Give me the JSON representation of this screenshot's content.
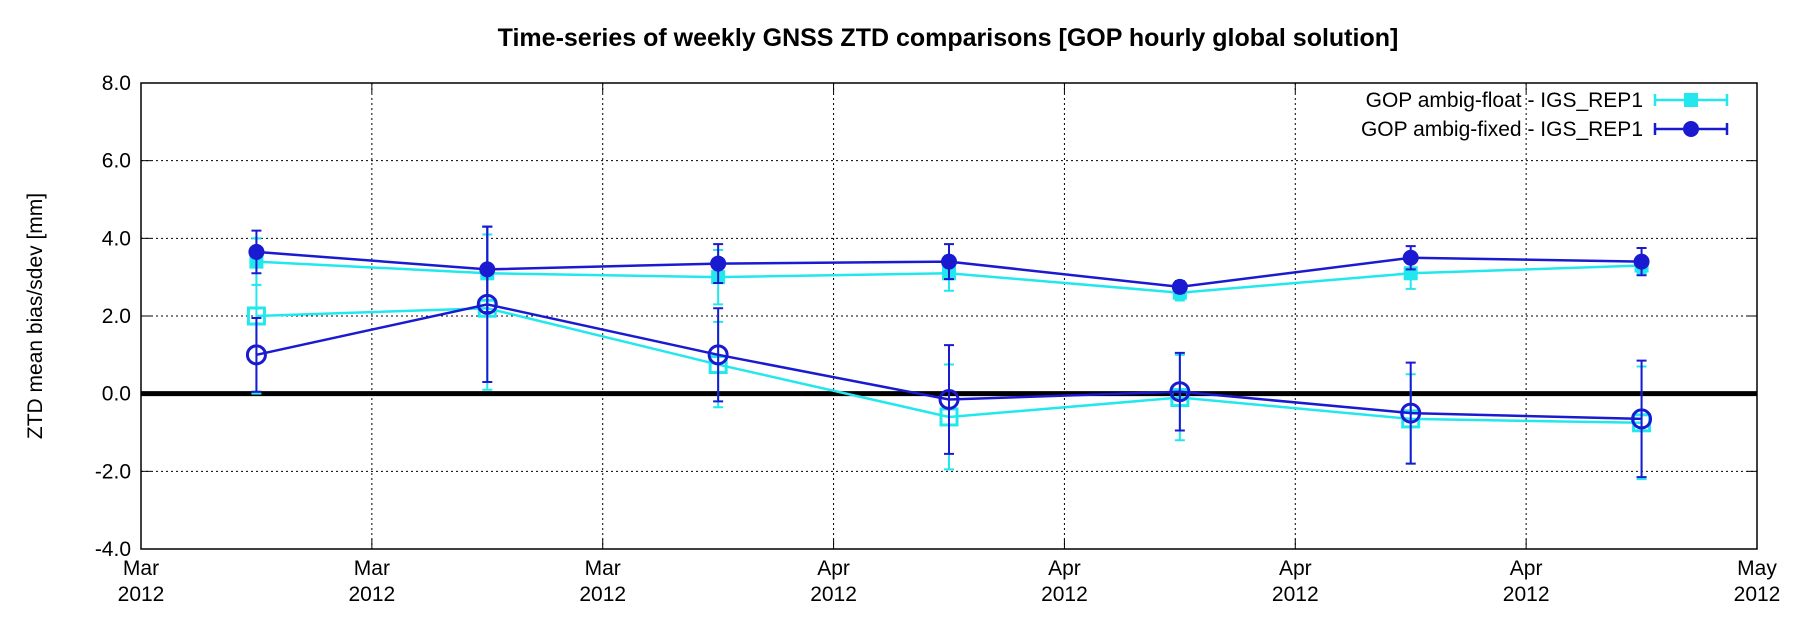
{
  "chart_data": {
    "type": "errorbar-line",
    "title": "Time-series of weekly GNSS ZTD comparisons [GOP hourly global solution]",
    "ylabel": "ZTD mean bias/sdev [mm]",
    "categories": [
      null,
      null,
      null,
      null,
      null,
      null,
      null
    ],
    "xtick_labels": [
      "Mar 2012",
      "Mar 2012",
      "Mar 2012",
      "Apr 2012",
      "Apr 2012",
      "Apr 2012",
      "Apr 2012",
      "May 2012"
    ],
    "ylim": [
      -4,
      8
    ],
    "yticks": [
      {
        "value": -4,
        "label": "-4.0"
      },
      {
        "value": -2,
        "label": "-2.0"
      },
      {
        "value": 0,
        "label": "0.0"
      },
      {
        "value": 2,
        "label": "2.0"
      },
      {
        "value": 4,
        "label": "4.0"
      },
      {
        "value": 6,
        "label": "6.0"
      },
      {
        "value": 8,
        "label": "8.0"
      }
    ],
    "grid": true,
    "legend": "upper right",
    "series": [
      {
        "name": "GOP ambig-float - IGS_REP1",
        "color": "#22e8ee",
        "marker": "square",
        "sdev": [
          3.4,
          3.1,
          3.0,
          3.1,
          2.6,
          3.1,
          3.3
        ],
        "sdev_err": [
          0.6,
          1.0,
          0.7,
          0.45,
          0.2,
          0.4,
          0.2
        ],
        "bias": [
          2.0,
          2.2,
          0.75,
          -0.6,
          -0.1,
          -0.65,
          -0.75
        ],
        "bias_err": [
          2.0,
          2.1,
          1.1,
          1.35,
          1.1,
          1.15,
          1.45
        ]
      },
      {
        "name": "GOP ambig-fixed - IGS_REP1",
        "color": "#1a1ad0",
        "marker": "circle",
        "sdev": [
          3.65,
          3.2,
          3.35,
          3.4,
          2.75,
          3.5,
          3.4
        ],
        "sdev_err": [
          0.55,
          1.1,
          0.5,
          0.45,
          0.15,
          0.3,
          0.35
        ],
        "bias": [
          1.0,
          2.3,
          1.0,
          -0.15,
          0.05,
          -0.5,
          -0.65
        ],
        "bias_err": [
          0.95,
          2.0,
          1.2,
          1.4,
          1.0,
          1.3,
          1.5
        ]
      }
    ]
  }
}
